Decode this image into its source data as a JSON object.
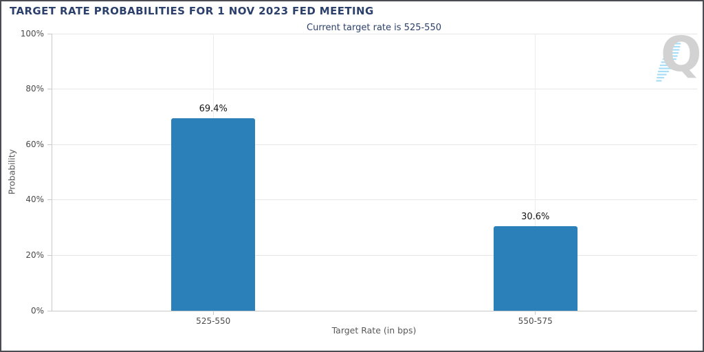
{
  "header": {
    "title": "TARGET RATE PROBABILITIES FOR 1 NOV 2023 FED MEETING",
    "title_color": "#2b3f6b",
    "subtitle": "Current target rate is 525-550"
  },
  "chart_data": {
    "type": "bar",
    "title": "TARGET RATE PROBABILITIES FOR 1 NOV 2023 FED MEETING",
    "subtitle": "Current target rate is 525-550",
    "categories": [
      "525-550",
      "550-575"
    ],
    "values": [
      69.4,
      30.6
    ],
    "value_labels": [
      "69.4%",
      "30.6%"
    ],
    "xlabel": "Target Rate (in bps)",
    "ylabel": "Probability",
    "ylim": [
      0,
      100
    ],
    "yticks": [
      0,
      20,
      40,
      60,
      80,
      100
    ],
    "ytick_labels": [
      "0%",
      "20%",
      "40%",
      "60%",
      "80%",
      "100%"
    ],
    "grid": true,
    "legend": false,
    "bar_color": "#2c80b9",
    "gridline_color": "#e6e6e6",
    "axis_color": "#c9c9c9"
  },
  "watermark": {
    "letter": "Q",
    "letter_color": "#d2d2d2",
    "dash_color": "#a7ddf6"
  },
  "window": {
    "background": "#ffffff",
    "border_color": "#4a4c52"
  }
}
